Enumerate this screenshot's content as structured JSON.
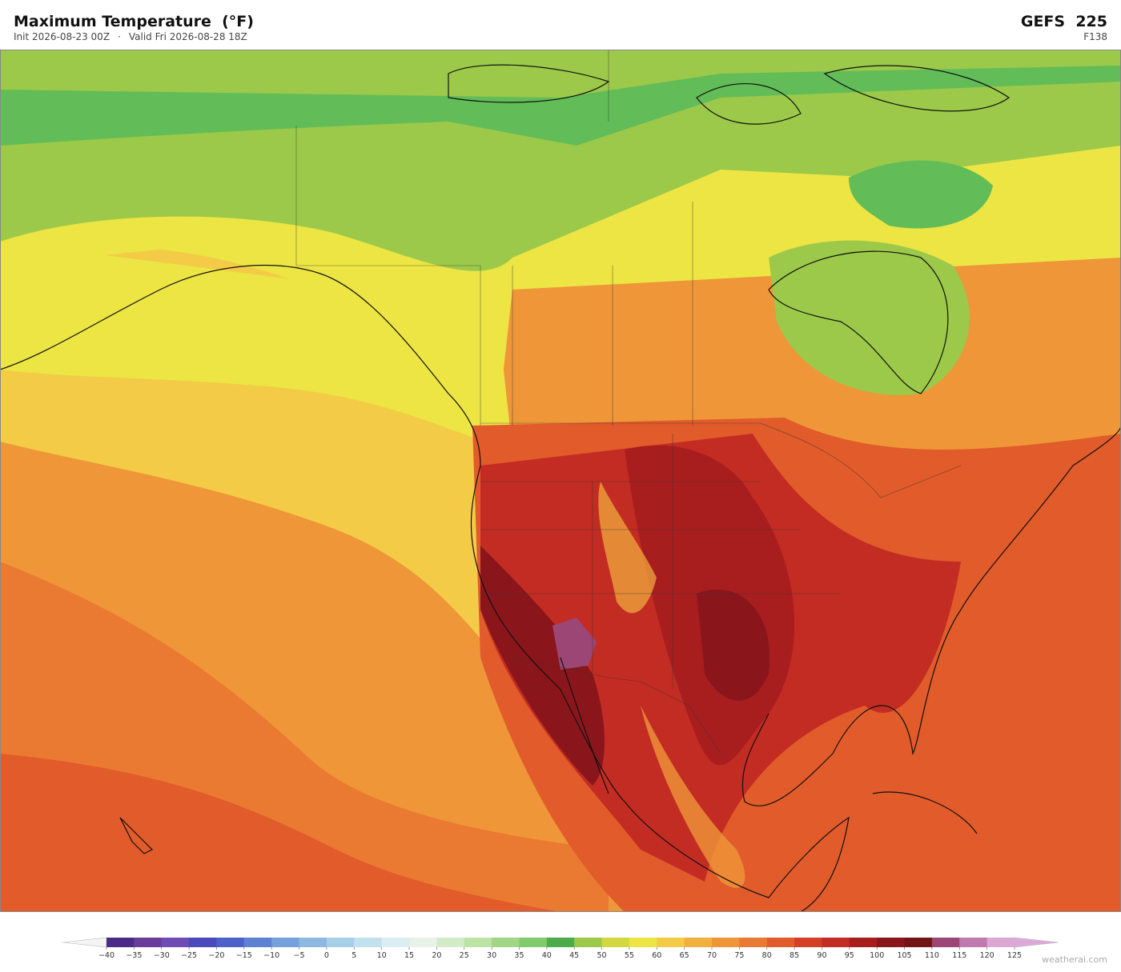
{
  "header": {
    "title": "Maximum Temperature  (°F)",
    "init": "Init 2026-08-23 00Z",
    "separator": "·",
    "valid": "Valid Fri 2026-08-28 18Z",
    "model": "GEFS  225",
    "forecast_hour": "F138"
  },
  "colorbar": {
    "labels": [
      "−40",
      "−35",
      "−30",
      "−25",
      "−20",
      "−15",
      "−10",
      "−5",
      "0",
      "5",
      "10",
      "15",
      "20",
      "25",
      "30",
      "35",
      "40",
      "45",
      "50",
      "55",
      "60",
      "65",
      "70",
      "75",
      "80",
      "85",
      "90",
      "95",
      "100",
      "105",
      "110",
      "115",
      "120",
      "125"
    ],
    "colors": [
      "#4a2b86",
      "#6a3d9a",
      "#6e4cb4",
      "#4a49bd",
      "#4d62c9",
      "#5d82d3",
      "#76a0dc",
      "#8fb8e1",
      "#a8cfe8",
      "#c3e0ef",
      "#d9edf2",
      "#e6f3e6",
      "#d3ebc9",
      "#bde3a6",
      "#a0d684",
      "#82cb6c",
      "#4aad4a",
      "#9cc94a",
      "#d2d940",
      "#ece544",
      "#f3cb46",
      "#f2b03f",
      "#ef9639",
      "#ea7a31",
      "#e15b2b",
      "#d43f26",
      "#c32c22",
      "#a81e1f",
      "#8a161c",
      "#731419",
      "#9b4674",
      "#c07aae",
      "#dba7d3"
    ],
    "under_color": "#f4f4f4",
    "over_color": "#dca9d6"
  },
  "footer": {
    "watermark": "weatherai.com"
  }
}
